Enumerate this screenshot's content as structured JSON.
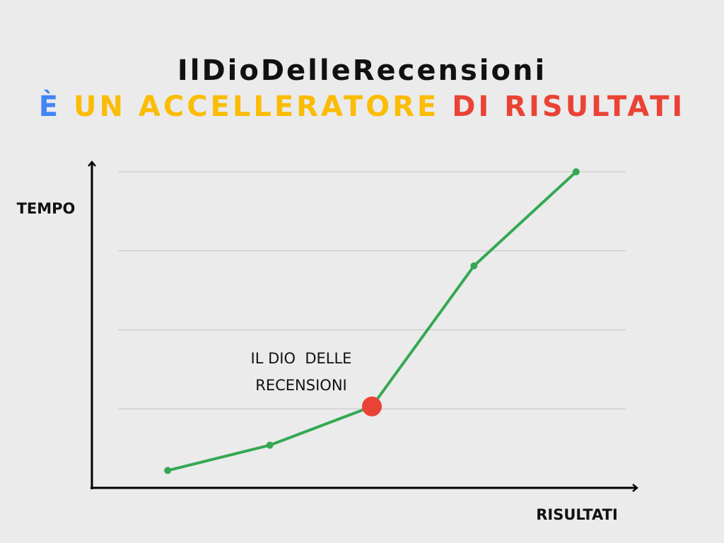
{
  "chart_data": {
    "type": "line",
    "title": "IlDioDelleRecensioni",
    "subtitle": [
      {
        "text": "È",
        "color": "#4285f4"
      },
      {
        "text": "UN ACCELLERATORE",
        "color": "#fbbc05"
      },
      {
        "text": "DI RISULTATI",
        "color": "#ea4335"
      }
    ],
    "y_label": "TEMPO",
    "x_label": "RISULTATI",
    "categories": [
      null,
      null,
      null,
      null,
      null
    ],
    "values": [
      0.22,
      0.54,
      1.03,
      2.81,
      4.0
    ],
    "color": "#34a853",
    "highlight_index": 2,
    "highlight_color": "#ea4335",
    "annotation": [
      "IL DIO  DELLE",
      "RECENSIONI"
    ],
    "ylim": [
      0,
      4
    ],
    "yticks": [
      1,
      2,
      3,
      4
    ],
    "grid": true
  }
}
